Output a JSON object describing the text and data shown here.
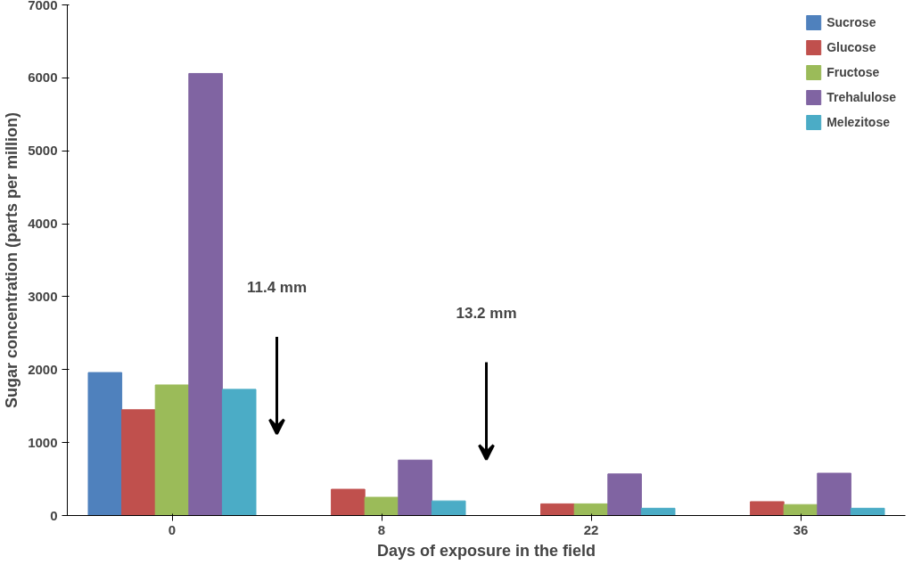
{
  "chart_data": {
    "type": "bar",
    "xlabel": "Days of exposure in the field",
    "ylabel": "Sugar concentration (parts per million)",
    "categories": [
      "0",
      "8",
      "22",
      "36"
    ],
    "series": [
      {
        "name": "Sucrose",
        "color": "#4f81bd",
        "values": [
          1960,
          0,
          0,
          0
        ]
      },
      {
        "name": "Glucose",
        "color": "#c0504d",
        "values": [
          1450,
          360,
          160,
          190
        ]
      },
      {
        "name": "Fructose",
        "color": "#9bbb59",
        "values": [
          1790,
          250,
          160,
          150
        ]
      },
      {
        "name": "Trehalulose",
        "color": "#8064a2",
        "values": [
          6060,
          760,
          570,
          580
        ]
      },
      {
        "name": "Melezitose",
        "color": "#4bacc6",
        "values": [
          1730,
          200,
          100,
          100
        ]
      }
    ],
    "ylim": [
      0,
      7000
    ],
    "yticks": [
      0,
      1000,
      2000,
      3000,
      4000,
      5000,
      6000,
      7000
    ],
    "annotations": [
      "11.4 mm",
      "13.2 mm"
    ],
    "legend": "top right",
    "grid": false
  }
}
